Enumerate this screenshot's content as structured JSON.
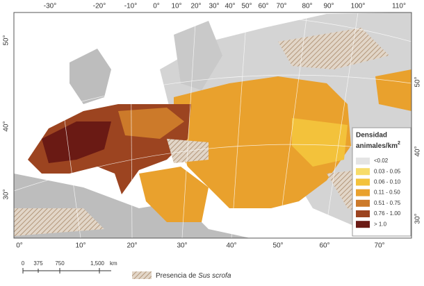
{
  "map": {
    "top_labels": [
      "-30°",
      "-20°",
      "-10°",
      "0°",
      "10°",
      "20°",
      "30°",
      "40°",
      "50°",
      "60°",
      "70°",
      "80°",
      "90°",
      "100°",
      "110°"
    ],
    "bottom_labels": [
      "0°",
      "10°",
      "20°",
      "30°",
      "40°",
      "50°",
      "60°",
      "70°"
    ],
    "left_labels": [
      "50°",
      "40°",
      "30°"
    ],
    "right_labels": [
      "50°",
      "40°",
      "30°"
    ]
  },
  "legend": {
    "title_line1": "Densidad",
    "title_line2": "animales/km",
    "title_sup": "2",
    "items": [
      {
        "label": "<0.02",
        "color": "#e4e4e4"
      },
      {
        "label": "0.03 - 0.05",
        "color": "#f7dc6a"
      },
      {
        "label": "0.06 - 0.10",
        "color": "#f3c23b"
      },
      {
        "label": "0.11 - 0.50",
        "color": "#e9a12d"
      },
      {
        "label": "0.51 - 0.75",
        "color": "#cc7a2a"
      },
      {
        "label": "0.76 - 1.00",
        "color": "#9c4420"
      },
      {
        "label": "> 1.0",
        "color": "#6a1a14"
      }
    ]
  },
  "scale_bar": {
    "labels": [
      "0",
      "375",
      "750",
      "1,500"
    ],
    "unit": "km"
  },
  "presence": {
    "text": "Presencia de ",
    "species": "Sus scrofa"
  }
}
